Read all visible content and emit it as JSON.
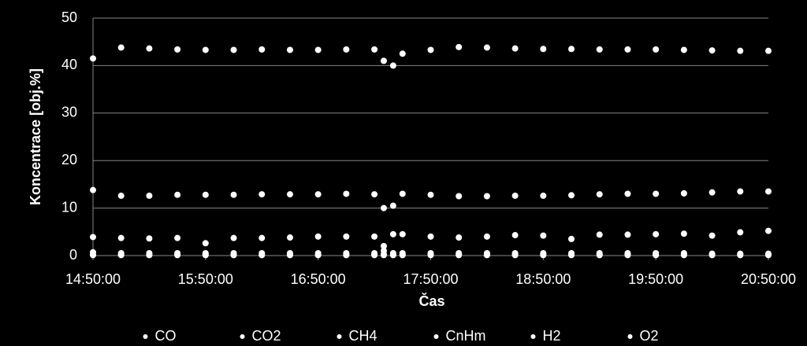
{
  "chart_data": {
    "type": "scatter",
    "x_label": "Čas",
    "y_label": "Koncentrace [obj.%]",
    "x": [
      "14:50:00",
      "15:05:00",
      "15:20:00",
      "15:35:00",
      "15:50:00",
      "16:05:00",
      "16:20:00",
      "16:35:00",
      "16:50:00",
      "17:05:00",
      "17:20:00",
      "17:25:00",
      "17:30:00",
      "17:35:00",
      "17:50:00",
      "18:05:00",
      "18:20:00",
      "18:35:00",
      "18:50:00",
      "19:05:00",
      "19:20:00",
      "19:35:00",
      "19:50:00",
      "20:05:00",
      "20:20:00",
      "20:35:00",
      "20:50:00"
    ],
    "series": [
      {
        "name": "CO",
        "color": "#ffffff",
        "values": [
          13.8,
          12.6,
          12.6,
          12.8,
          12.8,
          12.8,
          12.9,
          12.9,
          12.9,
          13,
          12.9,
          10,
          10.5,
          13,
          12.8,
          12.5,
          12.5,
          12.6,
          12.6,
          12.7,
          12.9,
          13,
          13,
          13.1,
          13.3,
          13.5,
          13.5
        ]
      },
      {
        "name": "CO2",
        "color": "#ffffff",
        "values": [
          3.9,
          3.7,
          3.6,
          3.7,
          2.6,
          3.7,
          3.7,
          3.8,
          4,
          4,
          4,
          2,
          4.5,
          4.5,
          4,
          3.8,
          4,
          4.3,
          4.2,
          3.5,
          4.4,
          4.4,
          4.5,
          4.6,
          4.2,
          4.9,
          5.2
        ]
      },
      {
        "name": "CH4",
        "color": "#ffffff",
        "values": [
          0.7,
          0.5,
          0.5,
          0.5,
          0.5,
          0.5,
          0.5,
          0.5,
          0.5,
          0.5,
          0.5,
          0.3,
          0.5,
          0.5,
          0.5,
          0.5,
          0.5,
          0.5,
          0.5,
          0.5,
          0.5,
          0.5,
          0.5,
          0.5,
          0.4,
          0.4,
          0.4
        ]
      },
      {
        "name": "CnHm",
        "color": "#ffffff",
        "values": [
          0.2,
          0.2,
          0.2,
          0.2,
          0.2,
          0.2,
          0.2,
          0.2,
          0.2,
          0.2,
          0.2,
          0.1,
          0.2,
          0.2,
          0.2,
          0.2,
          0.2,
          0.2,
          0.2,
          0.2,
          0.2,
          0.2,
          0.2,
          0.2,
          0.2,
          0.2,
          0.2
        ]
      },
      {
        "name": "H2",
        "color": "#ffffff",
        "values": [
          41.5,
          43.8,
          43.6,
          43.4,
          43.3,
          43.3,
          43.4,
          43.3,
          43.3,
          43.4,
          43.4,
          41,
          40,
          42.5,
          43.3,
          43.9,
          43.8,
          43.6,
          43.5,
          43.5,
          43.4,
          43.4,
          43.4,
          43.3,
          43.2,
          43.1,
          43.1
        ]
      },
      {
        "name": "O2",
        "color": "#ffffff",
        "values": [
          0.1,
          0.1,
          0.1,
          0.1,
          0.1,
          0.1,
          0.1,
          0.1,
          0.1,
          0.1,
          0.1,
          1,
          0.1,
          0.1,
          0.1,
          0.1,
          0.1,
          0.1,
          0.1,
          0.1,
          0.1,
          0.1,
          0.1,
          0.1,
          0.1,
          0.1,
          0.1
        ]
      }
    ],
    "xlim": [
      "14:50:00",
      "20:50:00"
    ],
    "xticks": [
      "14:50:00",
      "15:50:00",
      "16:50:00",
      "17:50:00",
      "18:50:00",
      "19:50:00",
      "20:50:00"
    ],
    "ylim": [
      0,
      50
    ],
    "yticks": [
      0,
      10,
      20,
      30,
      40,
      50
    ],
    "grid": true,
    "legend": "bottom"
  }
}
